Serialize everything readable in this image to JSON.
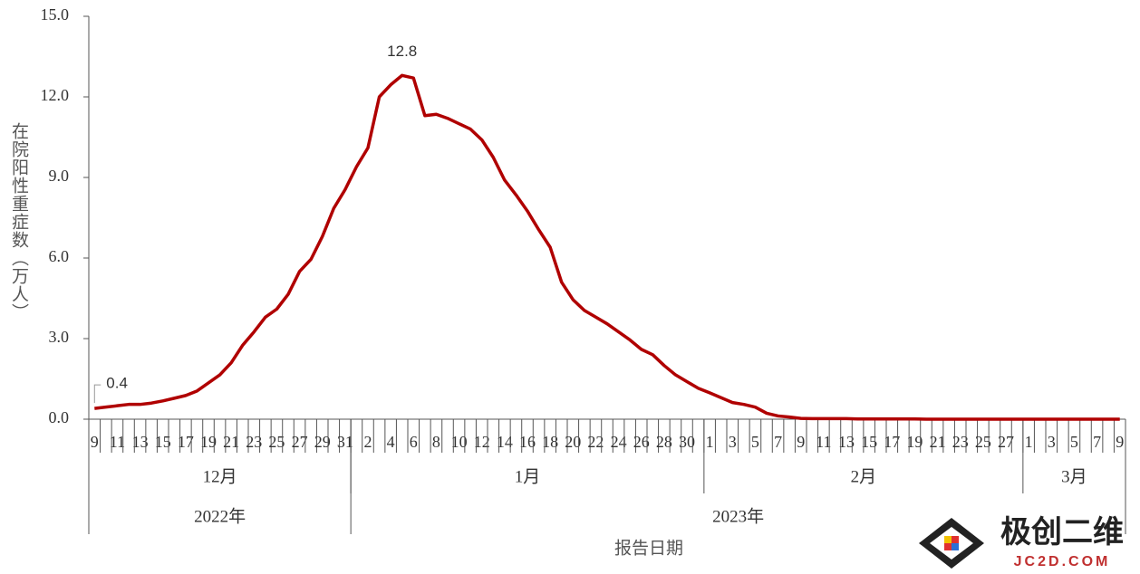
{
  "chart_data": {
    "type": "line",
    "y_axis_label": "在院阳性重症数（万人）",
    "x_axis_label": "报告日期",
    "ylim": [
      0,
      15
    ],
    "yticks": [
      {
        "value": 0,
        "label": "0.0"
      },
      {
        "value": 3,
        "label": "3.0"
      },
      {
        "value": 6,
        "label": "6.0"
      },
      {
        "value": 9,
        "label": "9.0"
      },
      {
        "value": 12,
        "label": "12.0"
      },
      {
        "value": 15,
        "label": "15.0"
      }
    ],
    "years": [
      {
        "label": "2022年",
        "months": [
          {
            "label": "12月",
            "days": [
              "9",
              null,
              "11",
              null,
              "13",
              null,
              "15",
              null,
              "17",
              null,
              "19",
              null,
              "21",
              null,
              "23",
              null,
              "25",
              null,
              "27",
              null,
              "29",
              null,
              "31"
            ]
          }
        ]
      },
      {
        "label": "2023年",
        "months": [
          {
            "label": "1月",
            "days": [
              null,
              "2",
              null,
              "4",
              null,
              "6",
              null,
              "8",
              null,
              "10",
              null,
              "12",
              null,
              "14",
              null,
              "16",
              null,
              "18",
              null,
              "20",
              null,
              "22",
              null,
              "24",
              null,
              "26",
              null,
              "28",
              null,
              "30",
              null
            ]
          },
          {
            "label": "2月",
            "days": [
              "1",
              null,
              "3",
              null,
              "5",
              null,
              "7",
              null,
              "9",
              null,
              "11",
              null,
              "13",
              null,
              "15",
              null,
              "17",
              null,
              "19",
              null,
              "21",
              null,
              "23",
              null,
              "25",
              null,
              "27",
              null
            ]
          },
          {
            "label": "3月",
            "days": [
              "1",
              null,
              "3",
              null,
              "5",
              null,
              "7",
              null,
              "9"
            ]
          }
        ]
      }
    ],
    "series": [
      {
        "name": "在院阳性重症数",
        "color": "#b00000",
        "values": [
          0.4,
          0.45,
          0.5,
          0.55,
          0.55,
          0.6,
          0.68,
          0.78,
          0.88,
          1.05,
          1.35,
          1.65,
          2.1,
          2.75,
          3.25,
          3.8,
          4.1,
          4.65,
          5.5,
          5.95,
          6.8,
          7.85,
          8.55,
          9.4,
          10.1,
          12.0,
          12.45,
          12.8,
          12.7,
          11.3,
          11.35,
          11.2,
          11.0,
          10.8,
          10.4,
          9.75,
          8.9,
          8.35,
          7.75,
          7.05,
          6.4,
          5.1,
          4.45,
          4.05,
          3.8,
          3.55,
          3.25,
          2.95,
          2.6,
          2.4,
          2.0,
          1.65,
          1.4,
          1.15,
          0.98,
          0.8,
          0.62,
          0.55,
          0.45,
          0.22,
          0.12,
          0.08,
          0.03,
          0.02,
          0.02,
          0.02,
          0.02,
          0.01,
          0.01,
          0.01,
          0.01,
          0.01,
          0.01,
          0,
          0,
          0,
          0,
          0,
          0,
          0,
          0,
          0,
          0,
          0,
          0,
          0,
          0,
          0,
          0,
          0,
          0
        ]
      }
    ],
    "annotated_points": [
      0,
      27
    ],
    "watermark": {
      "name": "极创二维",
      "url": "JC2D.COM"
    }
  }
}
